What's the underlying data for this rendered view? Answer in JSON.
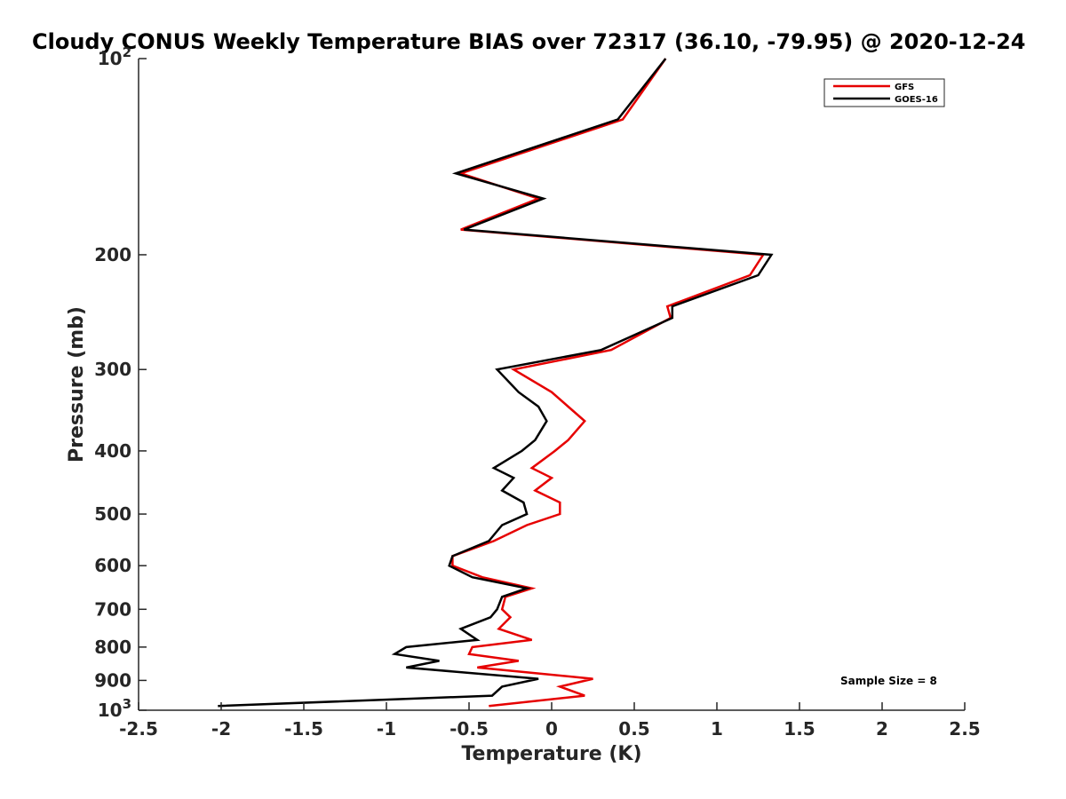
{
  "chart_data": {
    "type": "line",
    "title": "Cloudy CONUS Weekly Temperature BIAS over 72317 (36.10, -79.95) @ 2020-12-24",
    "xlabel": "Temperature (K)",
    "ylabel": "Pressure (mb)",
    "xlim": [
      -2.5,
      2.5
    ],
    "ylim": [
      100,
      1000
    ],
    "yscale": "log",
    "y_reversed": true,
    "grid": false,
    "legend_placement": "top-right",
    "x_ticks": [
      {
        "value": -2.5,
        "label": "-2.5"
      },
      {
        "value": -2,
        "label": "-2"
      },
      {
        "value": -1.5,
        "label": "-1.5"
      },
      {
        "value": -1,
        "label": "-1"
      },
      {
        "value": -0.5,
        "label": "-0.5"
      },
      {
        "value": 0,
        "label": "0"
      },
      {
        "value": 0.5,
        "label": "0.5"
      },
      {
        "value": 1,
        "label": "1"
      },
      {
        "value": 1.5,
        "label": "1.5"
      },
      {
        "value": 2,
        "label": "2"
      },
      {
        "value": 2.5,
        "label": "2.5"
      }
    ],
    "y_ticks": [
      {
        "value": 100,
        "label": "10",
        "sup": "2"
      },
      {
        "value": 200,
        "label": "200"
      },
      {
        "value": 300,
        "label": "300"
      },
      {
        "value": 400,
        "label": "400"
      },
      {
        "value": 500,
        "label": "500"
      },
      {
        "value": 600,
        "label": "600"
      },
      {
        "value": 700,
        "label": "700"
      },
      {
        "value": 800,
        "label": "800"
      },
      {
        "value": 900,
        "label": "900"
      },
      {
        "value": 1000,
        "label": "10",
        "sup": "3"
      }
    ],
    "annotation": "Sample Size = 8",
    "series": [
      {
        "name": "GFS",
        "color": "#e60000",
        "points": [
          [
            0.69,
            100
          ],
          [
            0.43,
            124
          ],
          [
            -0.55,
            150
          ],
          [
            -0.08,
            164
          ],
          [
            -0.55,
            183
          ],
          [
            1.28,
            200
          ],
          [
            1.2,
            215
          ],
          [
            0.7,
            240
          ],
          [
            0.72,
            250
          ],
          [
            0.36,
            280
          ],
          [
            -0.23,
            300
          ],
          [
            0,
            325
          ],
          [
            0.1,
            342
          ],
          [
            0.2,
            360
          ],
          [
            0.1,
            385
          ],
          [
            0.02,
            400
          ],
          [
            -0.12,
            425
          ],
          [
            0,
            440
          ],
          [
            -0.1,
            460
          ],
          [
            0.05,
            480
          ],
          [
            0.05,
            500
          ],
          [
            -0.15,
            520
          ],
          [
            -0.35,
            550
          ],
          [
            -0.6,
            580
          ],
          [
            -0.6,
            600
          ],
          [
            -0.42,
            625
          ],
          [
            -0.12,
            650
          ],
          [
            -0.28,
            670
          ],
          [
            -0.3,
            700
          ],
          [
            -0.25,
            720
          ],
          [
            -0.32,
            750
          ],
          [
            -0.12,
            780
          ],
          [
            -0.48,
            800
          ],
          [
            -0.5,
            820
          ],
          [
            -0.2,
            840
          ],
          [
            -0.45,
            860
          ],
          [
            0.25,
            895
          ],
          [
            0.05,
            920
          ],
          [
            0.2,
            950
          ],
          [
            -0.38,
            985
          ]
        ]
      },
      {
        "name": "GOES-16",
        "color": "#000000",
        "points": [
          [
            0.69,
            100
          ],
          [
            0.4,
            124
          ],
          [
            -0.58,
            150
          ],
          [
            -0.05,
            164
          ],
          [
            -0.53,
            183
          ],
          [
            1.33,
            200
          ],
          [
            1.25,
            215
          ],
          [
            0.73,
            240
          ],
          [
            0.73,
            250
          ],
          [
            0.3,
            280
          ],
          [
            -0.33,
            300
          ],
          [
            -0.2,
            325
          ],
          [
            -0.08,
            342
          ],
          [
            -0.03,
            360
          ],
          [
            -0.1,
            385
          ],
          [
            -0.18,
            400
          ],
          [
            -0.35,
            425
          ],
          [
            -0.23,
            440
          ],
          [
            -0.3,
            460
          ],
          [
            -0.17,
            480
          ],
          [
            -0.15,
            500
          ],
          [
            -0.3,
            520
          ],
          [
            -0.38,
            550
          ],
          [
            -0.6,
            580
          ],
          [
            -0.62,
            600
          ],
          [
            -0.48,
            625
          ],
          [
            -0.15,
            650
          ],
          [
            -0.3,
            670
          ],
          [
            -0.33,
            700
          ],
          [
            -0.37,
            720
          ],
          [
            -0.55,
            750
          ],
          [
            -0.45,
            780
          ],
          [
            -0.88,
            800
          ],
          [
            -0.95,
            820
          ],
          [
            -0.68,
            840
          ],
          [
            -0.88,
            860
          ],
          [
            -0.08,
            895
          ],
          [
            -0.3,
            920
          ],
          [
            -0.36,
            950
          ],
          [
            -2.02,
            985
          ]
        ]
      }
    ]
  }
}
